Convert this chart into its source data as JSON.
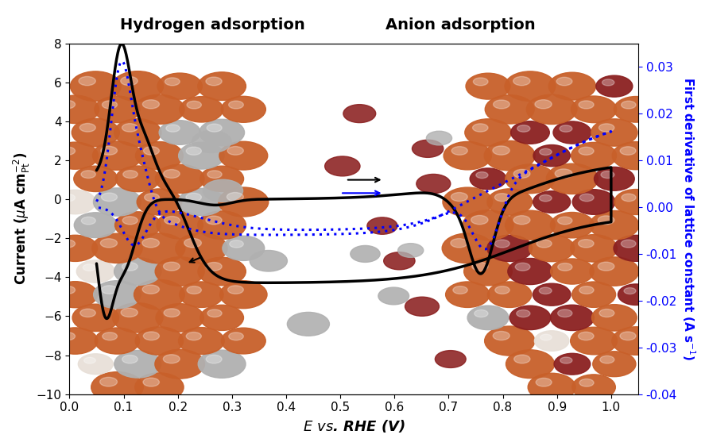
{
  "title_left": "Hydrogen adsorption",
  "title_right": "Anion adsorption",
  "xlabel": "E vs. RHE (V)",
  "ylabel_left": "Current (μA cm$^{-2}_{\\rm Pt}$)",
  "ylabel_right": "First derivative of lattice constant (A s$^{-1}$)",
  "xlim": [
    0.0,
    1.05
  ],
  "ylim_left": [
    -10,
    8
  ],
  "ylim_right": [
    -0.04,
    0.035
  ],
  "xticks": [
    0.0,
    0.1,
    0.2,
    0.3,
    0.4,
    0.5,
    0.6,
    0.7,
    0.8,
    0.9,
    1.0
  ],
  "yticks_left": [
    -10,
    -8,
    -6,
    -4,
    -2,
    0,
    2,
    4,
    6,
    8
  ],
  "yticks_right": [
    -0.04,
    -0.03,
    -0.02,
    -0.01,
    0.0,
    0.01,
    0.02,
    0.03
  ],
  "background_color": "white",
  "line_black_color": "black",
  "line_blue_color": "blue",
  "np_orange": "#C8602A",
  "np_gray": "#B0B0B0",
  "np_red": "#8B2020",
  "np_white": "#E8E0D8"
}
